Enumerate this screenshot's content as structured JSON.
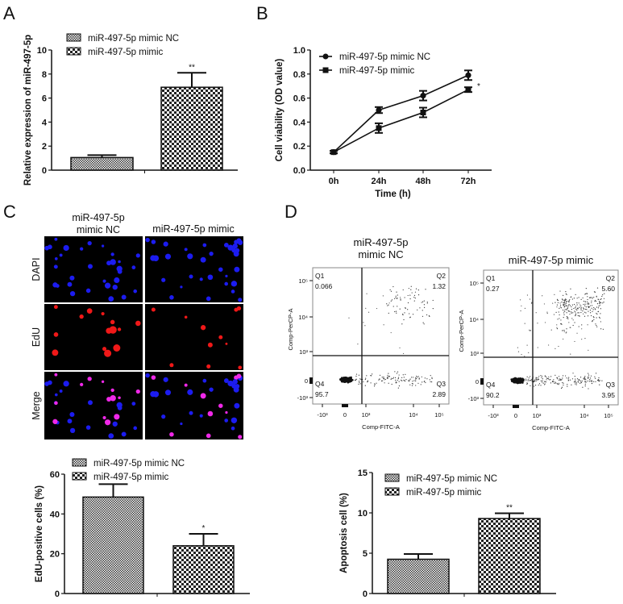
{
  "panel_labels": {
    "A": "A",
    "B": "B",
    "C": "C",
    "D": "D"
  },
  "colors": {
    "axis": "#111111",
    "bar_stroke": "#111111",
    "dapi": "#1a1aff",
    "edu": "#ff1a1a",
    "merge": "#ff33ff",
    "image_bg": "#000000"
  },
  "chart_data": [
    {
      "panel": "A",
      "type": "bar",
      "ylabel": "Relative expression of miR-497-5p",
      "xlabel": "",
      "ylim": [
        0,
        10
      ],
      "yticks": [
        0,
        2,
        4,
        6,
        8,
        10
      ],
      "legend": [
        "miR-497-5p mimic NC",
        "miR-497-5p mimic"
      ],
      "legend_placement": "top-left",
      "series": [
        {
          "name": "miR-497-5p mimic NC",
          "value": 1.05,
          "error": 0.2,
          "annotation": "",
          "pattern": "fine-checker"
        },
        {
          "name": "miR-497-5p mimic",
          "value": 6.9,
          "error": 1.2,
          "annotation": "**",
          "pattern": "coarse-checker"
        }
      ]
    },
    {
      "panel": "B",
      "type": "line",
      "ylabel": "Cell viability (OD value)",
      "xlabel": "Time (h)",
      "categories": [
        "0h",
        "24h",
        "48h",
        "72h"
      ],
      "ylim": [
        0,
        1.0
      ],
      "yticks": [
        "0.0",
        "0.2",
        "0.4",
        "0.6",
        "0.8",
        "1.0"
      ],
      "legend_placement": "top-left",
      "series": [
        {
          "name": "miR-497-5p mimic NC",
          "marker": "circle",
          "values": [
            0.15,
            0.5,
            0.62,
            0.79
          ],
          "errors": [
            0.01,
            0.025,
            0.04,
            0.04
          ]
        },
        {
          "name": "miR-497-5p mimic",
          "marker": "square",
          "values": [
            0.15,
            0.35,
            0.48,
            0.67
          ],
          "errors": [
            0.01,
            0.04,
            0.04,
            0.02
          ]
        }
      ],
      "annotation": "*"
    },
    {
      "panel": "C",
      "type": "bar",
      "ylabel": "EdU-positive cells (%)",
      "xlabel": "",
      "ylim": [
        0,
        60
      ],
      "yticks": [
        0,
        20,
        40,
        60
      ],
      "legend": [
        "miR-497-5p mimic NC",
        "miR-497-5p mimic"
      ],
      "legend_placement": "top-left",
      "series": [
        {
          "name": "miR-497-5p mimic NC",
          "value": 48.5,
          "error": 6.5,
          "annotation": "",
          "pattern": "fine-checker"
        },
        {
          "name": "miR-497-5p mimic",
          "value": 24,
          "error": 6,
          "annotation": "*",
          "pattern": "coarse-checker"
        }
      ]
    },
    {
      "panel": "D",
      "type": "bar",
      "ylabel": "Apoptosis cell (%)",
      "xlabel": "",
      "ylim": [
        0,
        15
      ],
      "yticks": [
        0,
        5,
        10,
        15
      ],
      "legend": [
        "miR-497-5p mimic NC",
        "miR-497-5p mimic"
      ],
      "legend_placement": "top-left",
      "series": [
        {
          "name": "miR-497-5p mimic NC",
          "value": 4.25,
          "error": 0.65,
          "annotation": "",
          "pattern": "fine-checker"
        },
        {
          "name": "miR-497-5p mimic",
          "value": 9.3,
          "error": 0.65,
          "annotation": "**",
          "pattern": "coarse-checker"
        }
      ]
    },
    {
      "panel": "D",
      "type": "scatter",
      "title": [
        "miR-497-5p",
        "mimic NC"
      ],
      "xlabel": "Comp-FITC-A",
      "ylabel": "Comp-PerCP-A",
      "xticks": [
        "-10³",
        "0",
        "10³",
        "10⁴",
        "10⁵"
      ],
      "yticks": [
        "10⁵",
        "10⁴",
        "10³",
        "0",
        "-10³"
      ],
      "quadrants": [
        {
          "name": "Q1",
          "value": "0.066"
        },
        {
          "name": "Q2",
          "value": "1.32"
        },
        {
          "name": "Q3",
          "value": "2.89"
        },
        {
          "name": "Q4",
          "value": "95.7"
        }
      ]
    },
    {
      "panel": "D",
      "type": "scatter",
      "title": [
        "miR-497-5p mimic"
      ],
      "xlabel": "Comp-FITC-A",
      "ylabel": "Comp-PerCP-A",
      "xticks": [
        "-10³",
        "0",
        "10³",
        "10⁴",
        "10⁵"
      ],
      "yticks": [
        "10⁵",
        "10⁴",
        "10³",
        "0",
        "-10³"
      ],
      "quadrants": [
        {
          "name": "Q1",
          "value": "0.27"
        },
        {
          "name": "Q2",
          "value": "5.60"
        },
        {
          "name": "Q3",
          "value": "3.95"
        },
        {
          "name": "Q4",
          "value": "90.2"
        }
      ]
    }
  ],
  "microscopy": {
    "columns": [
      [
        "miR-497-5p",
        "mimic NC"
      ],
      [
        "miR-497-5p mimic"
      ]
    ],
    "rows": [
      "DAPI",
      "EdU",
      "Merge"
    ]
  }
}
